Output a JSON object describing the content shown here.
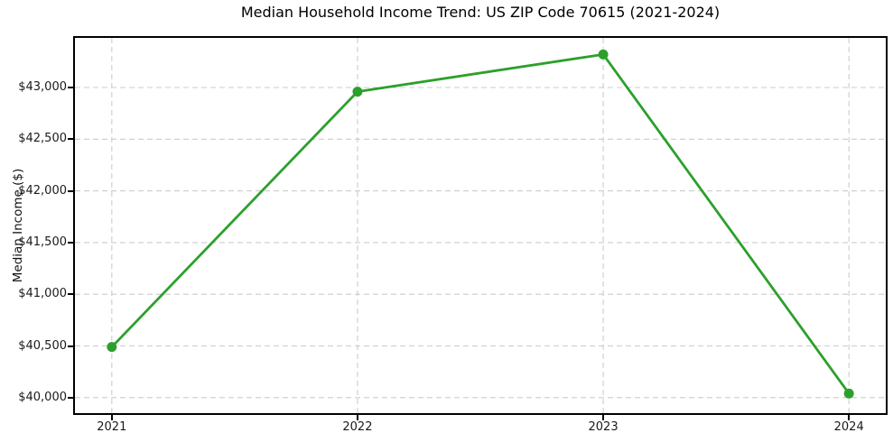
{
  "chart_data": {
    "type": "line",
    "title": "Median Household Income Trend: US ZIP Code 70615 (2021-2024)",
    "xlabel": "",
    "ylabel": "Median Income ($)",
    "series_name": "Median Household Income",
    "x": [
      2021,
      2022,
      2023,
      2024
    ],
    "x_tick_labels": [
      "2021",
      "2022",
      "2023",
      "2024"
    ],
    "values": [
      40490,
      42960,
      43320,
      40040
    ],
    "y_ticks": [
      40000,
      40500,
      41000,
      41500,
      42000,
      42500,
      43000
    ],
    "y_tick_labels": [
      "$40,000",
      "$40,500",
      "$41,000",
      "$41,500",
      "$42,000",
      "$42,500",
      "$43,000"
    ],
    "xlim": [
      2020.85,
      2024.15
    ],
    "ylim": [
      39850,
      43480
    ],
    "grid": true,
    "grid_style": "dashed",
    "legend_position": "none",
    "line_color": "#2ca02c",
    "marker": "circle",
    "grid_color": "#cccccc",
    "background_color": "#ffffff",
    "spine_color": "#000000"
  }
}
